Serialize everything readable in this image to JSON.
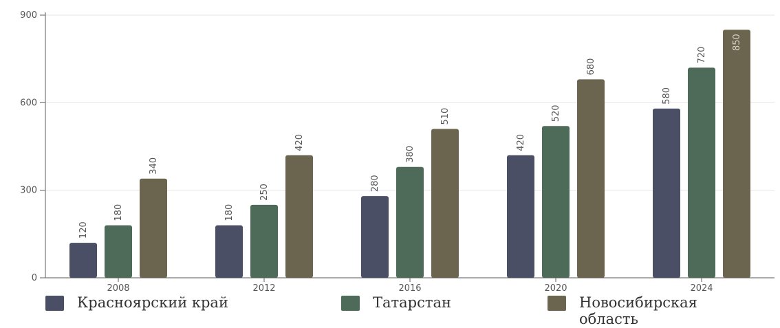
{
  "chart_data": {
    "type": "bar",
    "categories": [
      "2008",
      "2012",
      "2016",
      "2020",
      "2024"
    ],
    "series": [
      {
        "name": "Красноярский край",
        "color": "#4b4f66",
        "values": [
          120,
          180,
          280,
          420,
          580
        ]
      },
      {
        "name": "Татарстан",
        "color": "#4e6b5a",
        "values": [
          180,
          250,
          380,
          520,
          720
        ]
      },
      {
        "name": "Новосибирская область",
        "color": "#6b6550",
        "values": [
          340,
          420,
          510,
          680,
          850
        ]
      }
    ],
    "yticks": [
      "0",
      "300",
      "600",
      "900"
    ],
    "ylim": [
      0,
      900
    ],
    "grid": true,
    "legend_position": "bottom"
  }
}
